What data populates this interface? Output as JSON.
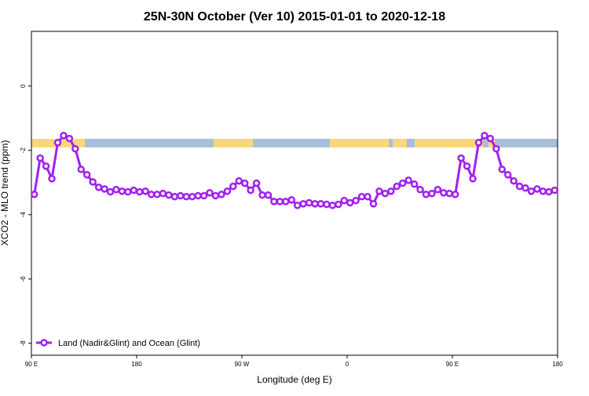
{
  "chart_data": {
    "type": "line",
    "title": "25N-30N October (Ver 10)   2015-01-01 to 2020-12-18",
    "x_label": "Longitude (deg E)",
    "y_label": "XCO2 - MLO trend (ppm)",
    "xlim": [
      90,
      540
    ],
    "ylim": [
      -8.37,
      1.7
    ],
    "xticks": [
      {
        "value": 90,
        "label": "90 E"
      },
      {
        "value": 180,
        "label": "180"
      },
      {
        "value": 270,
        "label": "90 W"
      },
      {
        "value": 360,
        "label": "0"
      },
      {
        "value": 450,
        "label": "90 E"
      },
      {
        "value": 540,
        "label": "180"
      }
    ],
    "yticks": [
      0,
      -2,
      -4,
      -6,
      -8
    ],
    "legend": "bottom-left",
    "x": [
      92.5,
      97.5,
      102.5,
      107.5,
      112.5,
      117.5,
      122.5,
      127.5,
      132.5,
      137.5,
      142.5,
      147.5,
      152.5,
      157.5,
      162.5,
      167.5,
      172.5,
      177.5,
      182.5,
      187.5,
      192.5,
      197.5,
      202.5,
      207.5,
      212.5,
      217.5,
      222.5,
      227.5,
      232.5,
      237.5,
      242.5,
      247.5,
      252.5,
      257.5,
      262.5,
      267.5,
      272.5,
      277.5,
      282.5,
      287.5,
      292.5,
      297.5,
      302.5,
      307.5,
      312.5,
      317.5,
      322.5,
      327.5,
      332.5,
      337.5,
      342.5,
      347.5,
      352.5,
      357.5,
      362.5,
      367.5,
      372.5,
      377.5,
      382.5,
      387.5,
      392.5,
      397.5,
      402.5,
      407.5,
      412.5,
      417.5,
      422.5,
      427.5,
      432.5,
      437.5,
      442.5,
      447.5,
      452.5,
      457.5,
      462.5,
      467.5,
      472.5,
      477.5,
      482.5,
      487.5,
      492.5,
      497.5,
      502.5,
      507.5,
      512.5,
      517.5,
      522.5,
      527.5,
      532.5,
      537.5
    ],
    "series": [
      {
        "name": "Land (Nadir&Glint) and Ocean (Glint)",
        "color": "#a020f0",
        "values": [
          -3.37,
          -2.24,
          -2.49,
          -2.88,
          -1.76,
          -1.54,
          -1.63,
          -1.95,
          -2.59,
          -2.76,
          -2.98,
          -3.15,
          -3.2,
          -3.29,
          -3.22,
          -3.27,
          -3.29,
          -3.24,
          -3.29,
          -3.27,
          -3.37,
          -3.37,
          -3.34,
          -3.39,
          -3.44,
          -3.41,
          -3.44,
          -3.44,
          -3.41,
          -3.41,
          -3.32,
          -3.41,
          -3.37,
          -3.27,
          -3.12,
          -2.95,
          -3.02,
          -3.24,
          -3.02,
          -3.39,
          -3.39,
          -3.59,
          -3.59,
          -3.59,
          -3.54,
          -3.71,
          -3.66,
          -3.63,
          -3.66,
          -3.66,
          -3.68,
          -3.71,
          -3.68,
          -3.56,
          -3.63,
          -3.56,
          -3.44,
          -3.44,
          -3.66,
          -3.27,
          -3.34,
          -3.27,
          -3.12,
          -3.02,
          -2.93,
          -3.05,
          -3.22,
          -3.37,
          -3.34,
          -3.22,
          -3.32,
          -3.34,
          -3.37,
          -2.24,
          -2.49,
          -2.88,
          -1.76,
          -1.54,
          -1.63,
          -1.95,
          -2.59,
          -2.76,
          -2.95,
          -3.12,
          -3.17,
          -3.27,
          -3.2,
          -3.27,
          -3.29,
          -3.24
        ]
      }
    ]
  }
}
